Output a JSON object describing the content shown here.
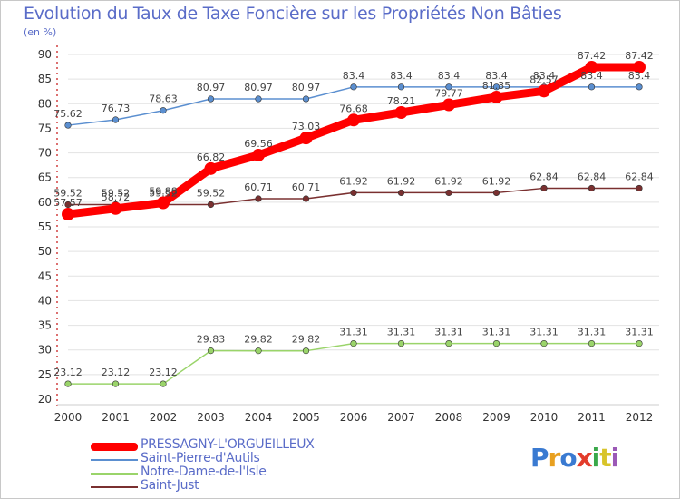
{
  "title": "Evolution du Taux de Taxe Foncière sur les Propriétés Non Bâties",
  "unit_label": "(en %)",
  "logo": {
    "text": "Proxiti",
    "colors": [
      "#3a7ad1",
      "#e8a020",
      "#3a7ad1",
      "#e33c2b",
      "#3aa84a",
      "#d8c42a",
      "#9b59b6"
    ]
  },
  "chart_data": {
    "type": "line",
    "x": [
      "2000",
      "2001",
      "2002",
      "2003",
      "2004",
      "2005",
      "2006",
      "2007",
      "2008",
      "2009",
      "2010",
      "2011",
      "2012"
    ],
    "ylim": [
      20,
      90
    ],
    "yticks": [
      "20",
      "25",
      "30",
      "35",
      "40",
      "45",
      "50",
      "55",
      "60",
      "65",
      "70",
      "75",
      "80",
      "85",
      "90"
    ],
    "grid": "horizontal",
    "legend_position": "bottom-left",
    "series": [
      {
        "name": "PRESSAGNY-L'ORGUEILLEUX",
        "color": "#ff0000",
        "values": [
          57.57,
          58.72,
          59.88,
          66.82,
          69.56,
          73.03,
          76.68,
          78.21,
          79.77,
          81.35,
          82.57,
          87.42,
          87.42
        ],
        "labels": [
          "57.57",
          "58.72",
          "59.88",
          "66.82",
          "69.56",
          "73.03",
          "76.68",
          "78.21",
          "79.77",
          "81.35",
          "82.57",
          "87.42",
          "87.42"
        ]
      },
      {
        "name": "Saint-Pierre-d'Autils",
        "color": "#5b8fd0",
        "values": [
          75.62,
          76.73,
          78.63,
          80.97,
          80.97,
          80.97,
          83.4,
          83.4,
          83.4,
          83.4,
          83.4,
          83.4,
          83.4
        ],
        "labels": [
          "75.62",
          "76.73",
          "78.63",
          "80.97",
          "80.97",
          "80.97",
          "83.4",
          "83.4",
          "83.4",
          "83.4",
          "83.4",
          "83.4",
          "83.4"
        ]
      },
      {
        "name": "Notre-Dame-de-l'Isle",
        "color": "#9ad46a",
        "values": [
          23.12,
          23.12,
          23.12,
          29.83,
          29.82,
          29.82,
          31.31,
          31.31,
          31.31,
          31.31,
          31.31,
          31.31,
          31.31
        ],
        "labels": [
          "23.12",
          "23.12",
          "23.12",
          "29.83",
          "29.82",
          "29.82",
          "31.31",
          "31.31",
          "31.31",
          "31.31",
          "31.31",
          "31.31",
          "31.31"
        ]
      },
      {
        "name": "Saint-Just",
        "color": "#7a3030",
        "values": [
          59.52,
          59.52,
          59.52,
          59.52,
          60.71,
          60.71,
          61.92,
          61.92,
          61.92,
          61.92,
          62.84,
          62.84,
          62.84
        ],
        "labels": [
          "59.52",
          "59.52",
          "59.52",
          "59.52",
          "60.71",
          "60.71",
          "61.92",
          "61.92",
          "61.92",
          "61.92",
          "62.84",
          "62.84",
          "62.84"
        ]
      }
    ]
  }
}
